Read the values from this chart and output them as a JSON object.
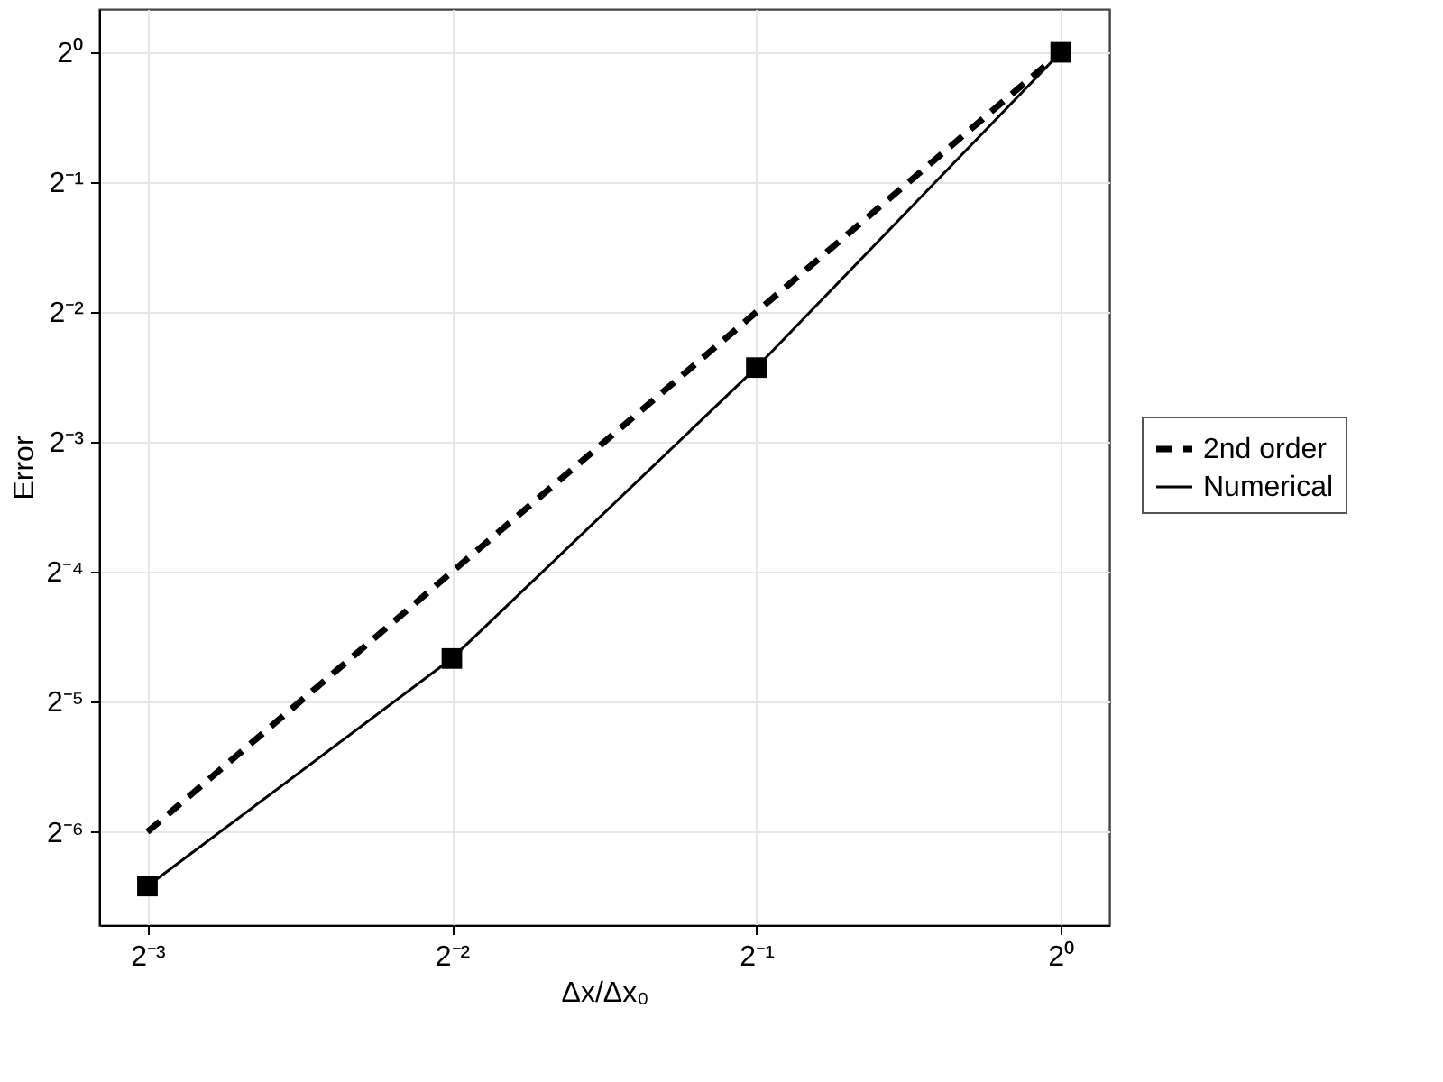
{
  "chart_data": {
    "type": "line",
    "xlabel": "Δx/Δx₀",
    "ylabel": "Error",
    "log": "xy",
    "grid": true,
    "legend": "right",
    "xlim": [
      0.112,
      1.117
    ],
    "ylim": [
      0.0095,
      1.26
    ],
    "xticks": [
      {
        "value": 0.125,
        "label": "2⁻³"
      },
      {
        "value": 0.25,
        "label": "2⁻²"
      },
      {
        "value": 0.5,
        "label": "2⁻¹"
      },
      {
        "value": 1,
        "label": "2⁰"
      }
    ],
    "yticks": [
      {
        "value": 0.015625,
        "label": "2⁻⁶"
      },
      {
        "value": 0.03125,
        "label": "2⁻⁵"
      },
      {
        "value": 0.0625,
        "label": "2⁻⁴"
      },
      {
        "value": 0.125,
        "label": "2⁻³"
      },
      {
        "value": 0.25,
        "label": "2⁻²"
      },
      {
        "value": 0.5,
        "label": "2⁻¹"
      },
      {
        "value": 1,
        "label": "2⁰"
      }
    ],
    "series": [
      {
        "name": "2nd order",
        "color": "#000000",
        "line_style": "dashed",
        "x": [
          0.125,
          1
        ],
        "values": [
          0.015625,
          1
        ]
      },
      {
        "name": "Numerical",
        "color": "#000000",
        "line_style": "solid",
        "marker": "square",
        "x": [
          0.125,
          0.25,
          0.5,
          1
        ],
        "values": [
          0.0117,
          0.0394,
          0.186,
          1
        ]
      }
    ]
  }
}
